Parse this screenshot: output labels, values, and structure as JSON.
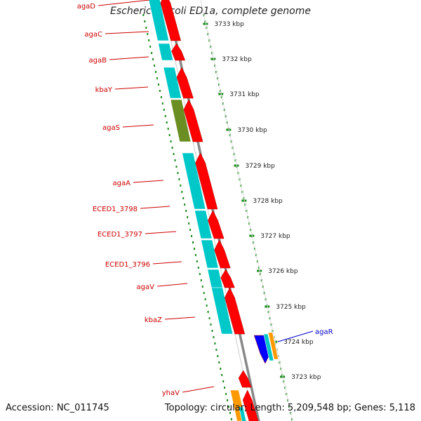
{
  "title": "Escherichia coli ED1a, complete genome",
  "footer": {
    "accession": "Accession: NC_011745",
    "summary": "Topology: circular; Length: 5,209,548 bp; Genes: 5,118"
  },
  "colors": {
    "cds": "#ff0000",
    "gene": "#00c8c8",
    "olive": "#6b8e23",
    "blue": "#0000ff",
    "orange": "#ff9900",
    "label_red": "#cc0000",
    "label_blue": "#0000cc",
    "ruler_green": "#1a8a1a",
    "backbone": "#888888"
  },
  "ruler": [
    {
      "label": "3733 kbp"
    },
    {
      "label": "3732 kbp"
    },
    {
      "label": "3731 kbp"
    },
    {
      "label": "3730 kbp"
    },
    {
      "label": "3729 kbp"
    },
    {
      "label": "3728 kbp"
    },
    {
      "label": "3727 kbp"
    },
    {
      "label": "3726 kbp"
    },
    {
      "label": "3725 kbp"
    },
    {
      "label": "3724 kbp"
    },
    {
      "label": "3723 kbp"
    }
  ],
  "gene_labels": [
    {
      "name": "agaD",
      "color": "red"
    },
    {
      "name": "agaC",
      "color": "red"
    },
    {
      "name": "agaB",
      "color": "red"
    },
    {
      "name": "kbaY",
      "color": "red"
    },
    {
      "name": "agaS",
      "color": "red"
    },
    {
      "name": "agaA",
      "color": "red"
    },
    {
      "name": "ECED1_3798",
      "color": "red"
    },
    {
      "name": "ECED1_3797",
      "color": "red"
    },
    {
      "name": "ECED1_3796",
      "color": "red"
    },
    {
      "name": "agaV",
      "color": "red"
    },
    {
      "name": "kbaZ",
      "color": "red"
    },
    {
      "name": "yhaV",
      "color": "red"
    },
    {
      "name": "agaR",
      "color": "blue"
    }
  ]
}
